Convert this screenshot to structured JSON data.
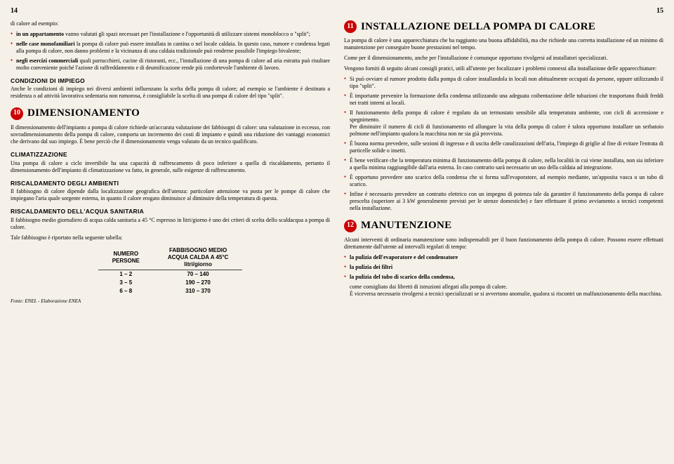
{
  "pages": {
    "left_num": "14",
    "right_num": "15"
  },
  "left": {
    "intro": "di calore ad esempio:",
    "bullets1": [
      "<span class='bold'>in un appartamento</span> vanno valutati gli spazi necessari per l'installazione e l'opportunità di utilizzare sistemi monoblocco o \"split\";",
      "<span class='bold'>nelle case monofamiliari</span> la pompa di calore può essere installata in cantina o nel locale caldaia. In questo caso, rumore e condensa legati alla pompa di calore, non danno problemi e la vicinanza di una caldaia tradizionale può renderne possibile l'impiego bivalente;",
      "<span class='bold'>negli esercizi commerciali</span> quali parrucchieri, cucine di ristoranti, ecc., l'installazione di una pompa di calore ad aria estratta può risultare molto conveniente poiché l'azione di raffreddamento e di deumificazione rende più confortevole l'ambiente di lavoro."
    ],
    "sec1_title": "CONDIZIONI DI IMPIEGO",
    "sec1_body": "Anche le condizioni di impiego nei diversi ambienti influenzano la scelta della pompa di calore; ad esempio se l'ambiente è destinato a residenza o ad attività lavorativa sedentaria non rumorosa, è consigliabile la scelta di una pompa di calore del tipo \"split\".",
    "h10_num": "10",
    "h10_title": "DIMENSIONAMENTO",
    "h10_body": "Il dimensionamento dell'impianto a pompa di calore richiede un'accurata valutazione dei fabbisogni di calore: una valutazione in eccesso, con sovradimensionamento della pompa di calore, comporta un incremento dei costi di impianto e quindi una riduzione dei vantaggi economici che derivano dal suo impiego. È bene perciò che il dimensionamento venga valutato da un tecnico qualificato.",
    "sec2_title": "CLIMATIZZAZIONE",
    "sec2_body": "Una pompa di calore a ciclo invertibile ha una capacità di raffrescamento di poco inferiore a quella di riscaldamento, pertanto il dimensionamento dell'impianto di climatizzazione va fatto, in generale, sulle esigenze di raffrescamento.",
    "sec3_title": "RISCALDAMENTO DEGLI AMBIENTI",
    "sec3_body": "Il fabbisogno di calore dipende dalla localizzazione geografica dell'utenza: particolare attenzione va posta per le pompe di calore che impiegano l'aria quale sorgente esterna, in quanto il calore erogato diminuisce al diminuire della temperatura di questa.",
    "sec4_title": "RISCALDAMENTO DELL'ACQUA SANITARIA",
    "sec4_body": "Il fabbisogno medio giornaliero di acqua calda sanitaria a 45 °C espresso in litri/giorno è uno dei criteri di scelta dello scaldacqua a pompa di calore.",
    "table_intro": "Tale fabbisogno è riportato nella seguente tabella:",
    "table": {
      "col1_h1": "NUMERO",
      "col1_h2": "PERSONE",
      "col2_h1": "FABBISOGNO MEDIO",
      "col2_h2": "ACQUA CALDA A 45°C",
      "col2_h3": "litri/giorno",
      "rows": [
        {
          "persons": "1 – 2",
          "demand": "70 – 140"
        },
        {
          "persons": "3 – 5",
          "demand": "190 – 270"
        },
        {
          "persons": "6 – 8",
          "demand": "310 – 370"
        }
      ]
    },
    "table_note": "Fonte: ENEL - Elaborazione ENEA"
  },
  "right": {
    "h11_num": "11",
    "h11_title": "INSTALLAZIONE DELLA POMPA DI CALORE",
    "p1": "La pompa di calore è una apparecchiatura che ha raggiunto una buona affidabilità, ma che richiede una corretta installazione ed un minimo di manutenzione per conseguire buone prestazioni nel tempo.",
    "p2": "Come per il dimensionamento, anche per l'installazione è comunque opportuno rivolgersi ad installatori specializzati.",
    "p3": "Vengono forniti di seguito alcuni consigli pratici, utili all'utente per focalizzare i problemi connessi alla installazione delle apparecchiature:",
    "bullets": [
      "Si può ovviare al rumore prodotto dalla pompa di calore installandola in locali non abitualmente occupati da persone, oppure utilizzando il tipo \"split\".",
      "È importante prevenire la formazione della condensa utilizzando una adeguata coibentazione delle tubazioni che trasportano fluidi freddi nei tratti interni ai locali.",
      "Il funzionamento della pompa di calore è regolato da un termostato sensibile alla temperatura ambiente, con cicli di accensione e spegnimento.<br>Per diminuire il numero di cicli di funzionamento ed allungare la vita della pompa di calore è talora opportuno installare un serbatoio polmone nell'impianto qualora la macchina non ne sia già provvista.",
      "È buona norma prevedere, sulle sezioni di ingresso e di uscita delle canalizzazioni dell'aria, l'impiego di griglie al fine di evitare l'entrata di particelle solide o insetti.",
      "È bene verificare che la temperatura minima di funzionamento della pompa di calore, nella località in cui viene installata, non sia inferiore a quella minima raggiungibile dall'aria esterna. In caso contrario sarà necessario un uso della caldaia ad integrazione.",
      "È opportuno prevedere uno scarico della condensa che si forma sull'evaporatore, ad esempio mediante, un'apposita vasca o un tubo di scarico.",
      "Infine è necessario prevedere un contratto elettrico con un impegno di potenza tale da garantire il funzionamento della pompa di calore prescelta (superiore ai 3 kW generalmente previsti per le utenze domestiche) e fare effettuare il primo avviamento a tecnici competenti nella installazione."
    ],
    "h12_num": "12",
    "h12_title": "MANUTENZIONE",
    "m_p1": "Alcuni interventi di ordinaria manutenzione sono indispensabili per il buon funzionamento della pompa di calore. Possono essere effettuati direttamente dall'utente ad intervalli regolari di tempo:",
    "m_bullets": [
      "<span class='bold'>la pulizia dell'evaporatore e del condensatore</span>",
      "<span class='bold'>la pulizia dei filtri</span>",
      "<span class='bold'>la pulizia del tubo di scarico della condensa,</span>"
    ],
    "m_p2": "come consigliato dai libretti di istruzioni allegati alla pompa di calore.<br>È viceversa necessario rivolgersi a tecnici specializzati se si avvertono anomalie, qualora si riscontri un malfunzionamento della macchina."
  }
}
